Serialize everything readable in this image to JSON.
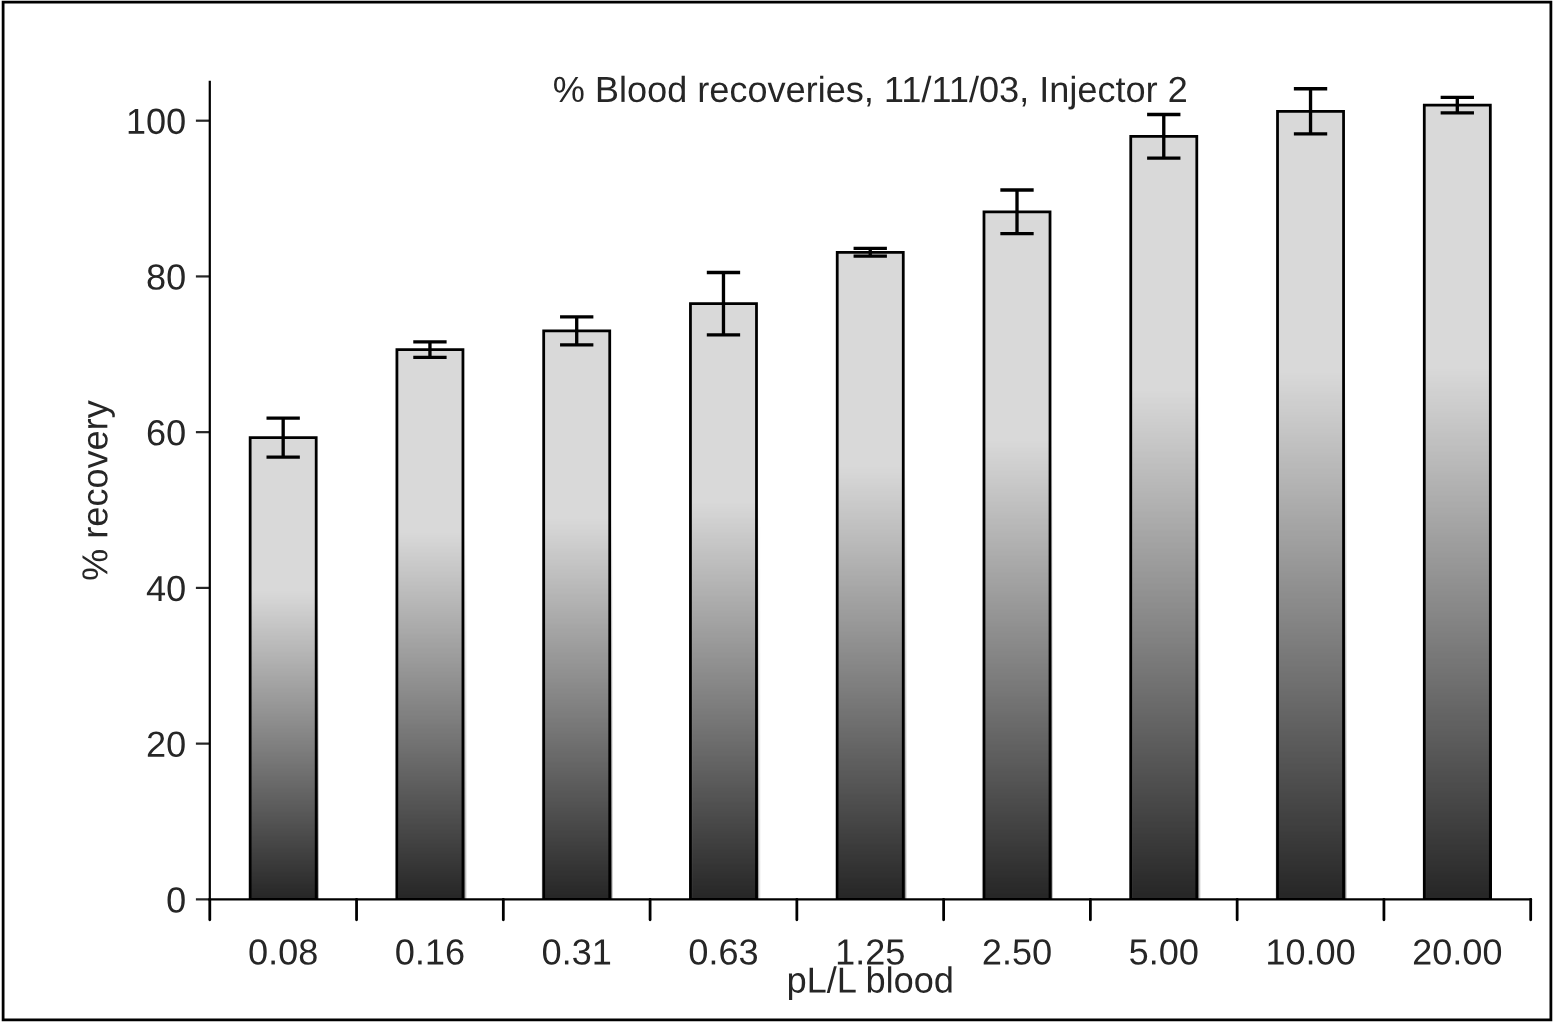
{
  "chart_data": {
    "type": "bar",
    "title": "% Blood recoveries, 11/11/03, Injector 2",
    "xlabel": "pL/L blood",
    "ylabel": "% recovery",
    "categories": [
      "0.08",
      "0.16",
      "0.31",
      "0.63",
      "1.25",
      "2.50",
      "5.00",
      "10.00",
      "20.00"
    ],
    "values": [
      59.3,
      70.6,
      73.0,
      76.5,
      83.1,
      88.3,
      98.0,
      101.2,
      102.0
    ],
    "errors": [
      2.5,
      1,
      1.8,
      4,
      0.5,
      2.8,
      2.8,
      2.9,
      1
    ],
    "color": "#808080",
    "ylim": [
      0,
      105
    ],
    "yticks": [
      0,
      20,
      40,
      60,
      80,
      100
    ],
    "grid": false,
    "legend": false
  }
}
